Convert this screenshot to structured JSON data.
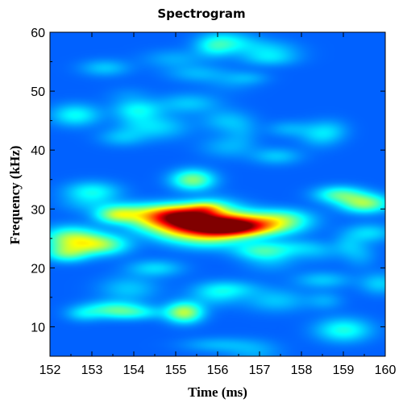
{
  "chart_data": {
    "type": "heatmap",
    "title": "Spectrogram",
    "xlabel": "Time (ms)",
    "ylabel": "Frequency (kHz)",
    "xlim": [
      152,
      160
    ],
    "ylim": [
      5,
      60
    ],
    "x_ticks": [
      152,
      153,
      154,
      155,
      156,
      157,
      158,
      159,
      160
    ],
    "y_ticks": [
      10,
      20,
      30,
      40,
      50,
      60
    ],
    "colormap": "jet",
    "background_level": 0.22,
    "blobs": [
      {
        "t": 155.9,
        "f": 27.3,
        "st": 0.9,
        "sf": 1.4,
        "v": 0.72
      },
      {
        "t": 156.4,
        "f": 27.0,
        "st": 0.6,
        "sf": 1.0,
        "v": 0.35
      },
      {
        "t": 155.2,
        "f": 29.0,
        "st": 0.5,
        "sf": 1.3,
        "v": 0.5
      },
      {
        "t": 154.6,
        "f": 29.0,
        "st": 0.45,
        "sf": 1.2,
        "v": 0.2
      },
      {
        "t": 155.7,
        "f": 30.2,
        "st": 0.3,
        "sf": 0.8,
        "v": 0.2
      },
      {
        "t": 152.5,
        "f": 25.0,
        "st": 0.45,
        "sf": 1.4,
        "v": 0.3
      },
      {
        "t": 153.2,
        "f": 24.0,
        "st": 0.45,
        "sf": 1.2,
        "v": 0.28
      },
      {
        "t": 152.4,
        "f": 22.5,
        "st": 0.35,
        "sf": 1.0,
        "v": 0.22
      },
      {
        "t": 153.6,
        "f": 29.0,
        "st": 0.35,
        "sf": 1.0,
        "v": 0.28
      },
      {
        "t": 155.4,
        "f": 35.0,
        "st": 0.35,
        "sf": 1.2,
        "v": 0.28
      },
      {
        "t": 155.2,
        "f": 12.5,
        "st": 0.3,
        "sf": 1.2,
        "v": 0.33
      },
      {
        "t": 155.7,
        "f": 25.0,
        "st": 0.6,
        "sf": 1.3,
        "v": 0.18
      },
      {
        "t": 157.5,
        "f": 28.5,
        "st": 0.5,
        "sf": 1.1,
        "v": 0.2
      },
      {
        "t": 157.0,
        "f": 23.0,
        "st": 0.45,
        "sf": 1.0,
        "v": 0.15
      },
      {
        "t": 159.5,
        "f": 31.0,
        "st": 0.4,
        "sf": 1.1,
        "v": 0.3
      },
      {
        "t": 158.9,
        "f": 32.5,
        "st": 0.4,
        "sf": 1.0,
        "v": 0.22
      },
      {
        "t": 159.0,
        "f": 9.5,
        "st": 0.45,
        "sf": 1.4,
        "v": 0.18
      },
      {
        "t": 153.5,
        "f": 13.0,
        "st": 0.5,
        "sf": 1.0,
        "v": 0.2
      },
      {
        "t": 153.0,
        "f": 33.0,
        "st": 0.45,
        "sf": 1.2,
        "v": 0.16
      },
      {
        "t": 152.6,
        "f": 46.0,
        "st": 0.4,
        "sf": 1.3,
        "v": 0.16
      },
      {
        "t": 154.1,
        "f": 47.0,
        "st": 0.4,
        "sf": 1.1,
        "v": 0.12
      },
      {
        "t": 155.3,
        "f": 48.0,
        "st": 0.5,
        "sf": 1.2,
        "v": 0.1
      },
      {
        "t": 157.4,
        "f": 39.0,
        "st": 0.4,
        "sf": 1.0,
        "v": 0.1
      },
      {
        "t": 159.6,
        "f": 26.0,
        "st": 0.4,
        "sf": 1.1,
        "v": 0.12
      },
      {
        "t": 158.5,
        "f": 18.0,
        "st": 0.45,
        "sf": 1.0,
        "v": 0.1
      },
      {
        "t": 154.5,
        "f": 20.0,
        "st": 0.45,
        "sf": 1.0,
        "v": 0.12
      },
      {
        "t": 156.3,
        "f": 16.5,
        "st": 0.5,
        "sf": 1.0,
        "v": 0.1
      },
      {
        "t": 157.2,
        "f": 57.0,
        "st": 0.5,
        "sf": 1.2,
        "v": 0.1
      },
      {
        "t": 153.3,
        "f": 54.0,
        "st": 0.4,
        "sf": 1.0,
        "v": 0.1
      },
      {
        "t": 156.0,
        "f": 7.0,
        "st": 0.6,
        "sf": 0.9,
        "v": 0.08
      }
    ]
  }
}
